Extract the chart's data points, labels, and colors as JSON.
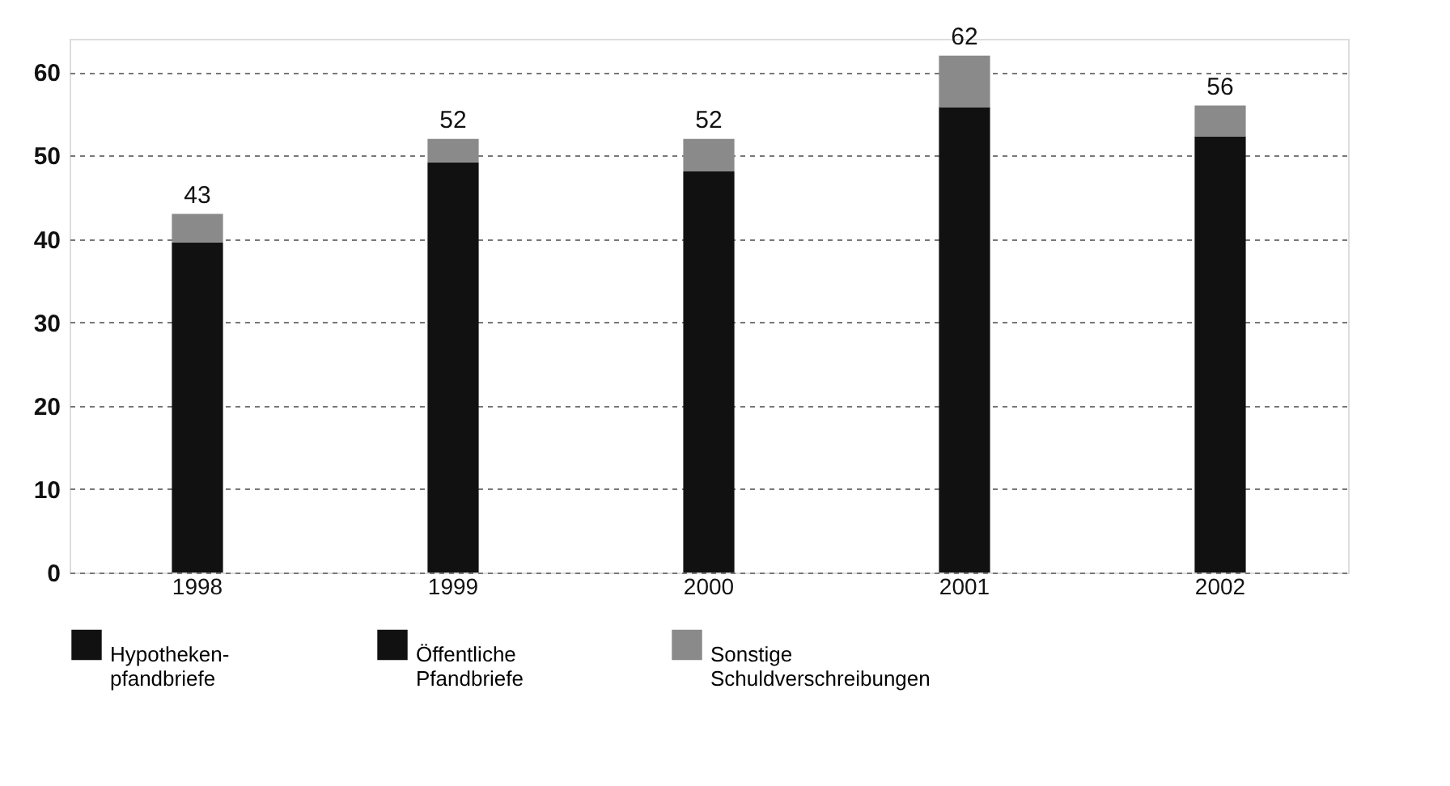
{
  "chart_data": {
    "type": "bar",
    "stacked": true,
    "categories": [
      "1998",
      "1999",
      "2000",
      "2001",
      "2002"
    ],
    "series": [
      {
        "name": "Hypotheken-\npfandbriefe",
        "color": "#111111",
        "values": [
          39.6,
          49.2,
          48.1,
          55.8,
          52.3
        ]
      },
      {
        "name": "Öffentliche\nPfandbriefe",
        "color": "#111111",
        "values": [
          null,
          null,
          null,
          null,
          null
        ]
      },
      {
        "name": "Sonstige\nSchuldverschreibungen",
        "color": "#8a8a8a",
        "values": [
          3.4,
          2.8,
          3.9,
          6.2,
          3.7
        ]
      }
    ],
    "totals": [
      "43",
      "52",
      "52",
      "62",
      "56"
    ],
    "ylim": [
      0,
      64
    ],
    "yticks": [
      0,
      10,
      20,
      30,
      40,
      50,
      60
    ],
    "grid": "y",
    "legend": "bottom"
  }
}
